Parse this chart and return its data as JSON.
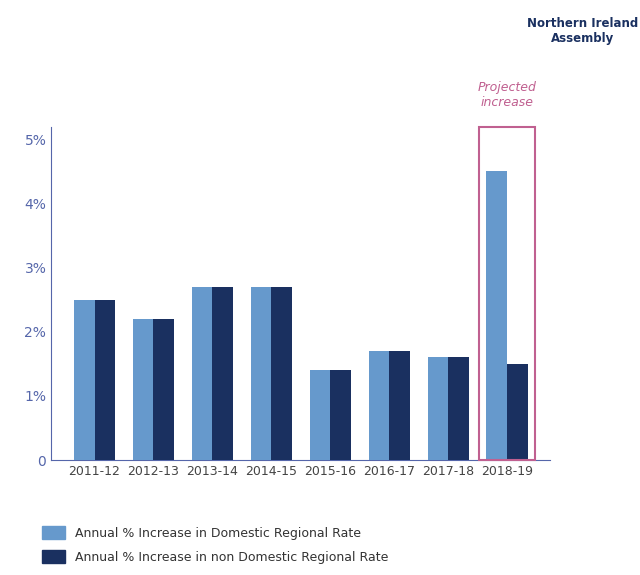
{
  "categories": [
    "2011-12",
    "2012-13",
    "2013-14",
    "2014-15",
    "2015-16",
    "2016-17",
    "2017-18",
    "2018-19"
  ],
  "domestic": [
    2.5,
    2.2,
    2.7,
    2.7,
    1.4,
    1.7,
    1.6,
    4.5
  ],
  "non_domestic": [
    2.5,
    2.2,
    2.7,
    2.7,
    1.4,
    1.7,
    1.6,
    1.5
  ],
  "domestic_color": "#6699cc",
  "non_domestic_color": "#1a3060",
  "ylim": [
    0,
    5.2
  ],
  "yticks": [
    0,
    1,
    2,
    3,
    4,
    5
  ],
  "ytick_labels": [
    "0",
    "1%",
    "2%",
    "3%",
    "4%",
    "5%"
  ],
  "legend_domestic": "Annual % Increase in Domestic Regional Rate",
  "legend_non_domestic": "Annual % Increase in non Domestic Regional Rate",
  "projected_label": "Projected\nincrease",
  "projected_color": "#c06090",
  "background_color": "#ffffff",
  "axis_color": "#5566aa",
  "bar_width": 0.35,
  "projected_index": 7,
  "nia_text": "Northern Ireland\nAssembly"
}
